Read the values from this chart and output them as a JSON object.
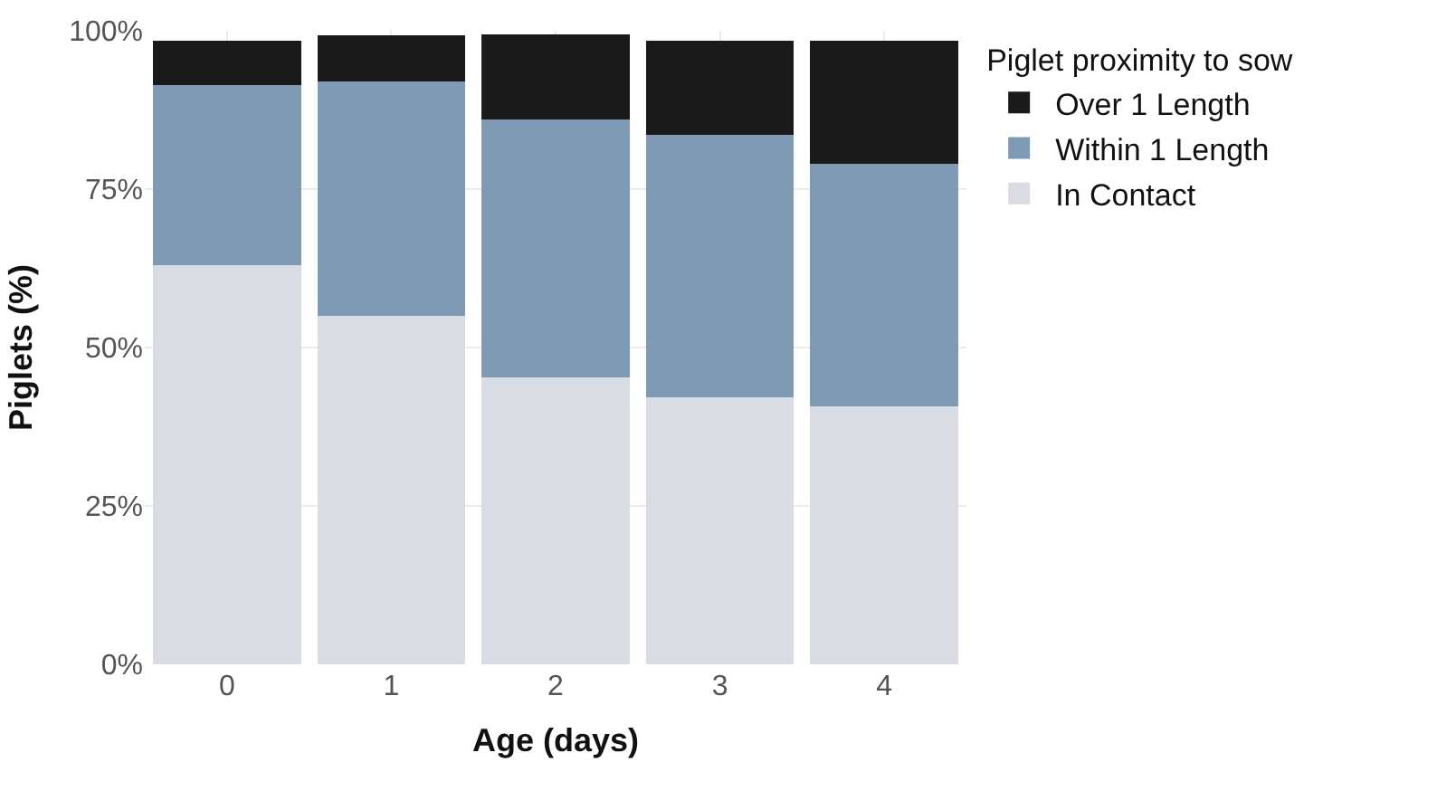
{
  "chart_data": {
    "type": "bar",
    "stacked": true,
    "xlabel": "Age (days)",
    "ylabel": "Piglets (%)",
    "legend_title": "Piglet proximity to sow",
    "categories": [
      "0",
      "1",
      "2",
      "3",
      "4"
    ],
    "series": [
      {
        "name": "In Contact",
        "color": "#d9dce3",
        "values": [
          63,
          55,
          45.3,
          42.2,
          40.7
        ]
      },
      {
        "name": "Within 1 Length",
        "color": "#7f9ab5",
        "values": [
          28.5,
          37,
          40.7,
          41.4,
          38.3
        ]
      },
      {
        "name": "Over 1 Length",
        "color": "#1a1a1a",
        "values": [
          7,
          7.3,
          13.4,
          14.9,
          19.5
        ]
      }
    ],
    "ylim": [
      0,
      100
    ],
    "yticks": [
      {
        "value": 0,
        "label": "0%"
      },
      {
        "value": 25,
        "label": "25%"
      },
      {
        "value": 50,
        "label": "50%"
      },
      {
        "value": 75,
        "label": "75%"
      },
      {
        "value": 100,
        "label": "100%"
      }
    ],
    "grid": true,
    "legend": "right"
  }
}
